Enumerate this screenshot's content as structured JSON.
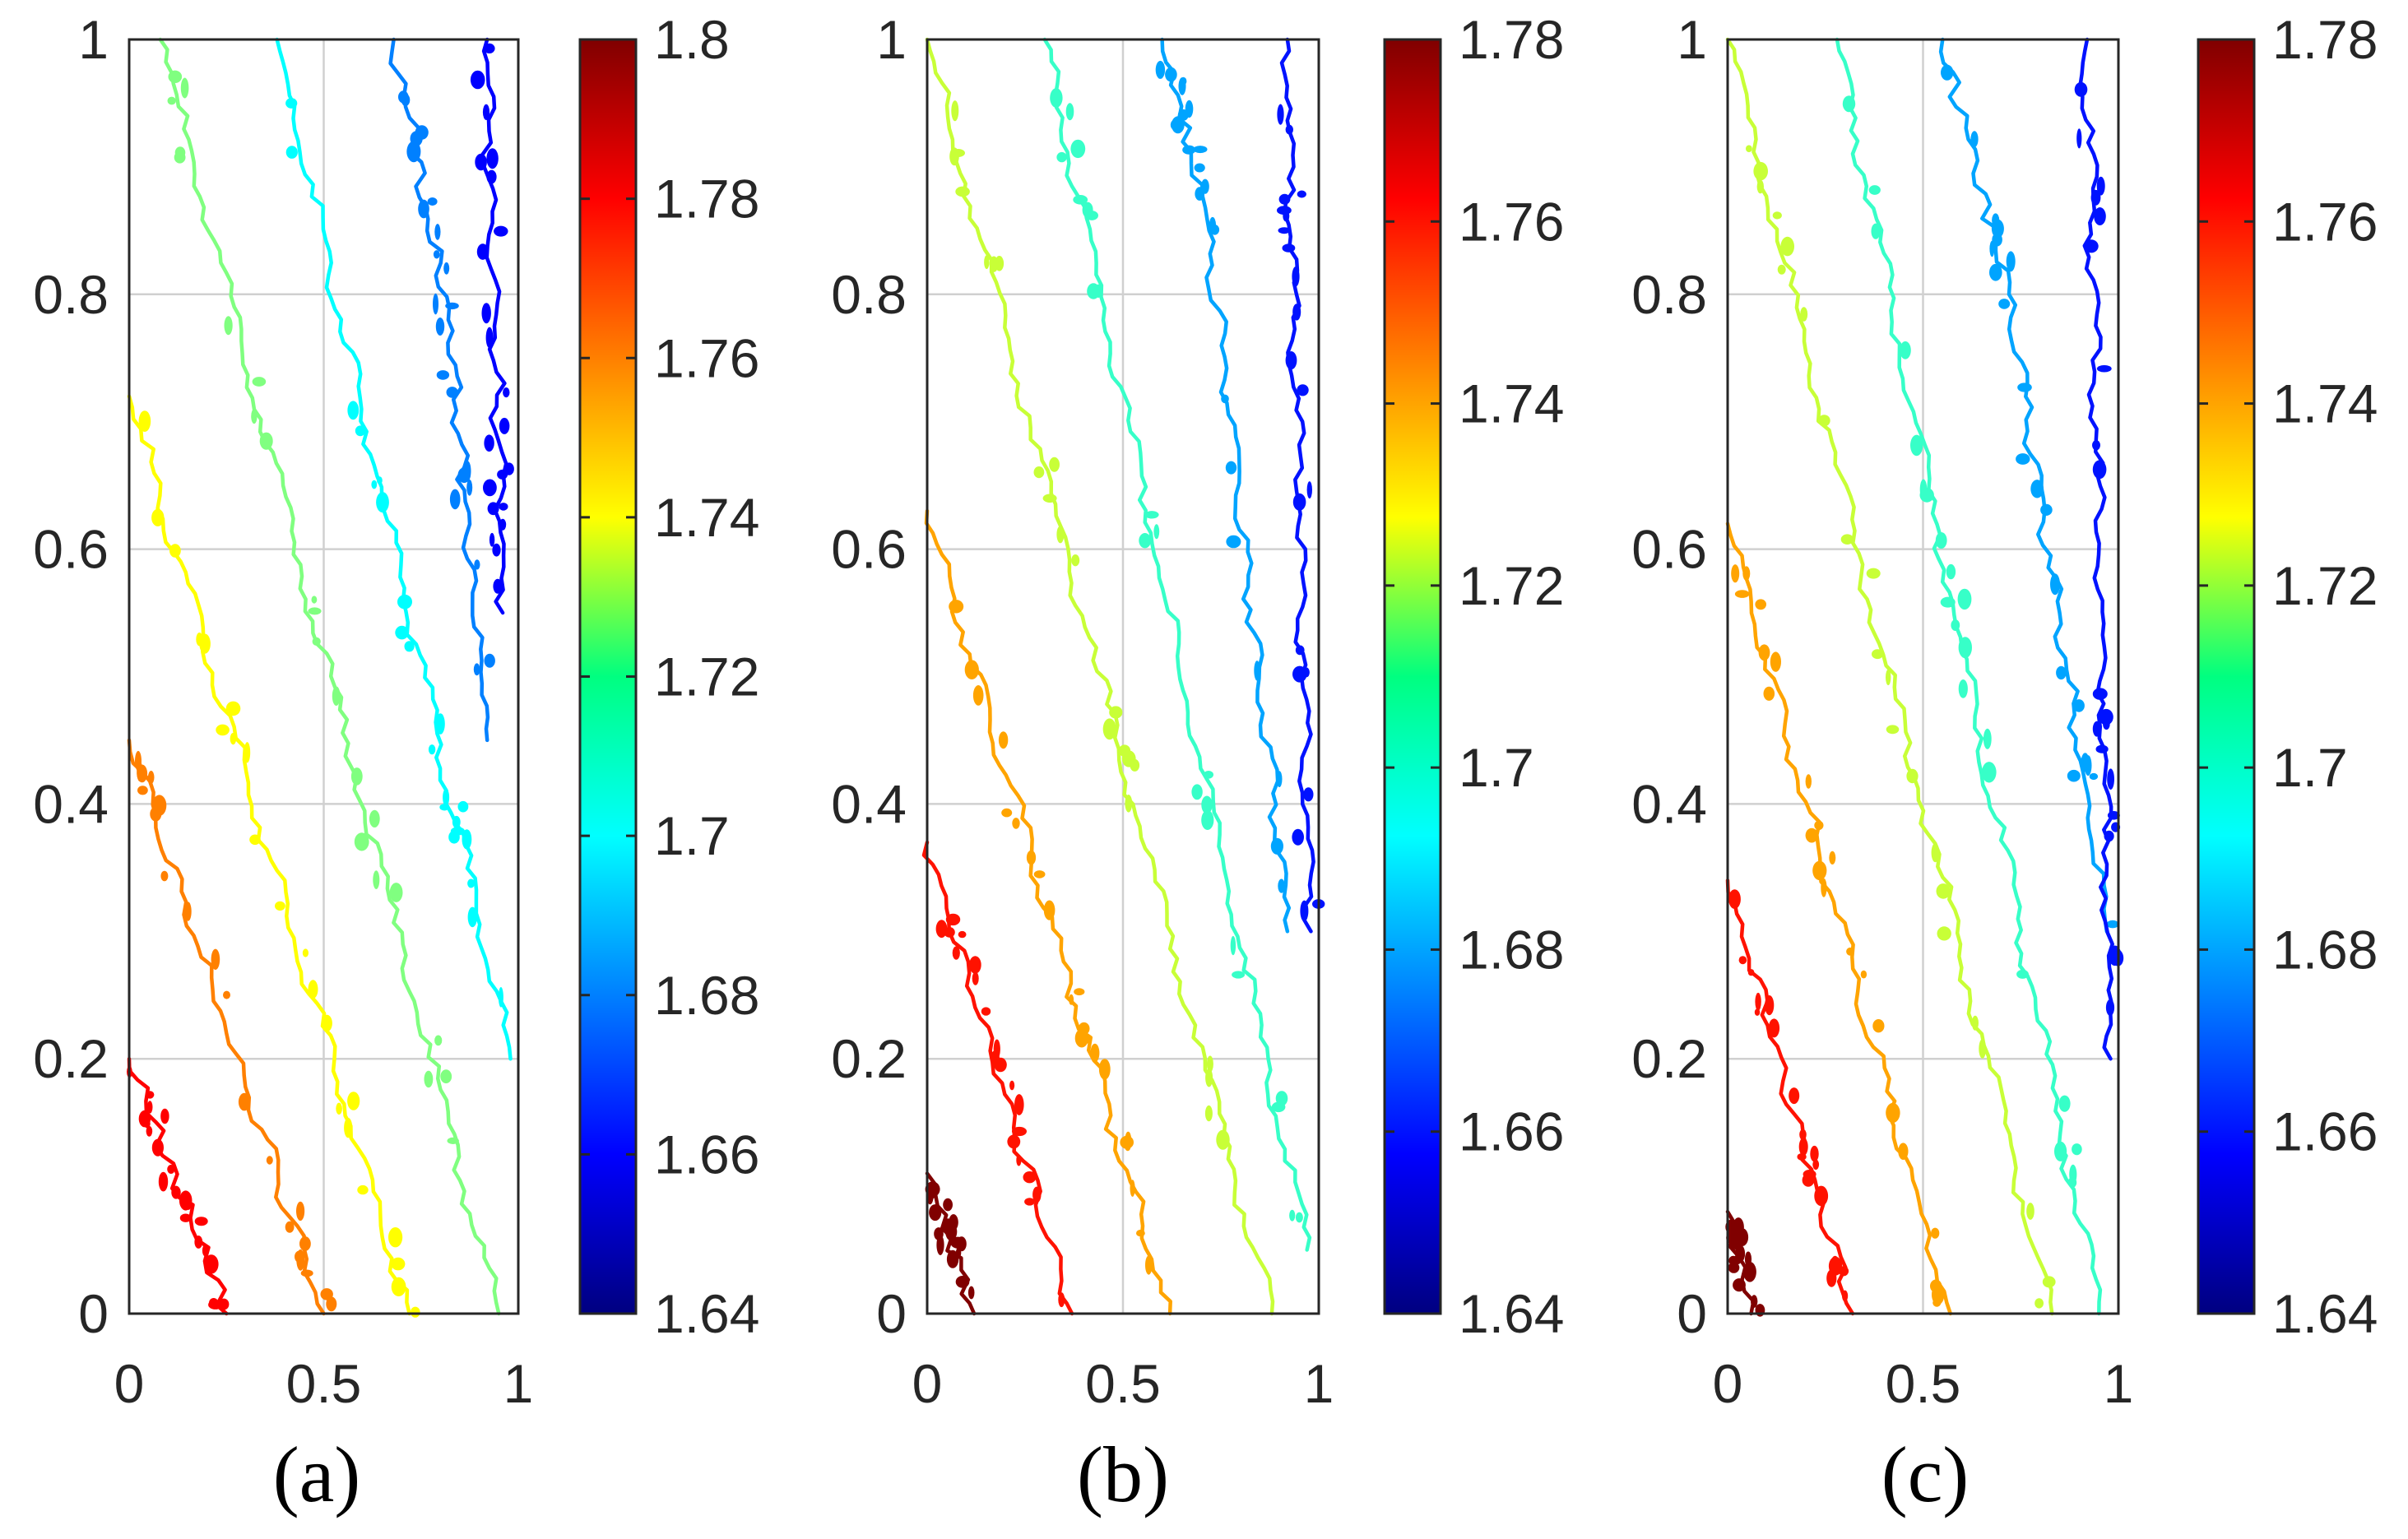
{
  "chart_data": [
    {
      "type": "contour",
      "caption": "(a)",
      "x_ticks": [
        "0",
        "0.5",
        "1"
      ],
      "y_ticks": [
        "0",
        "0.2",
        "0.4",
        "0.6",
        "0.8",
        "1"
      ],
      "xlim": [
        0,
        1
      ],
      "ylim": [
        0,
        1
      ],
      "grid": true,
      "colorbar": {
        "range": [
          1.64,
          1.8
        ],
        "ticks": [
          1.64,
          1.66,
          1.68,
          1.7,
          1.72,
          1.74,
          1.76,
          1.78,
          1.8
        ],
        "tick_labels": [
          "1.64",
          "1.66",
          "1.68",
          "1.7",
          "1.72",
          "1.74",
          "1.76",
          "1.78",
          "1.8"
        ]
      },
      "contours": [
        {
          "level": 1.78,
          "points": [
            [
              0.0,
              0.2
            ],
            [
              0.25,
              0.0
            ]
          ]
        },
        {
          "level": 1.76,
          "points": [
            [
              0.0,
              0.45
            ],
            [
              0.5,
              0.0
            ]
          ]
        },
        {
          "level": 1.74,
          "points": [
            [
              0.0,
              0.72
            ],
            [
              0.72,
              0.0
            ]
          ]
        },
        {
          "level": 1.72,
          "points": [
            [
              0.08,
              1.0
            ],
            [
              0.95,
              0.0
            ]
          ]
        },
        {
          "level": 1.7,
          "points": [
            [
              0.38,
              1.0
            ],
            [
              0.98,
              0.2
            ]
          ]
        },
        {
          "level": 1.68,
          "points": [
            [
              0.68,
              1.0
            ],
            [
              0.82,
              0.78
            ],
            [
              0.92,
              0.45
            ]
          ]
        },
        {
          "level": 1.66,
          "points": [
            [
              0.92,
              1.0
            ],
            [
              0.96,
              0.55
            ]
          ]
        }
      ]
    },
    {
      "type": "contour",
      "caption": "(b)",
      "x_ticks": [
        "0",
        "0.5",
        "1"
      ],
      "y_ticks": [
        "0",
        "0.2",
        "0.4",
        "0.6",
        "0.8",
        "1"
      ],
      "xlim": [
        0,
        1
      ],
      "ylim": [
        0,
        1
      ],
      "grid": true,
      "colorbar": {
        "range": [
          1.64,
          1.78
        ],
        "ticks": [
          1.64,
          1.66,
          1.68,
          1.7,
          1.72,
          1.74,
          1.76,
          1.78
        ],
        "tick_labels": [
          "1.64",
          "1.66",
          "1.68",
          "1.7",
          "1.72",
          "1.74",
          "1.76",
          "1.78"
        ]
      },
      "contours": [
        {
          "level": 1.78,
          "points": [
            [
              0.0,
              0.11
            ],
            [
              0.12,
              0.0
            ]
          ]
        },
        {
          "level": 1.76,
          "points": [
            [
              0.0,
              0.37
            ],
            [
              0.37,
              0.0
            ]
          ]
        },
        {
          "level": 1.74,
          "points": [
            [
              0.0,
              0.63
            ],
            [
              0.62,
              0.0
            ]
          ]
        },
        {
          "level": 1.72,
          "points": [
            [
              0.0,
              1.0
            ],
            [
              0.88,
              0.0
            ]
          ]
        },
        {
          "level": 1.7,
          "points": [
            [
              0.3,
              1.0
            ],
            [
              0.97,
              0.05
            ]
          ]
        },
        {
          "level": 1.68,
          "points": [
            [
              0.6,
              1.0
            ],
            [
              0.72,
              0.85
            ],
            [
              0.92,
              0.3
            ]
          ]
        },
        {
          "level": 1.66,
          "points": [
            [
              0.92,
              1.0
            ],
            [
              0.98,
              0.3
            ]
          ]
        }
      ]
    },
    {
      "type": "contour",
      "caption": "(c)",
      "x_ticks": [
        "0",
        "0.5",
        "1"
      ],
      "y_ticks": [
        "0",
        "0.2",
        "0.4",
        "0.6",
        "0.8",
        "1"
      ],
      "xlim": [
        0,
        1
      ],
      "ylim": [
        0,
        1
      ],
      "grid": true,
      "colorbar": {
        "range": [
          1.64,
          1.78
        ],
        "ticks": [
          1.64,
          1.66,
          1.68,
          1.7,
          1.72,
          1.74,
          1.76,
          1.78
        ],
        "tick_labels": [
          "1.64",
          "1.66",
          "1.68",
          "1.7",
          "1.72",
          "1.74",
          "1.76",
          "1.78"
        ]
      },
      "contours": [
        {
          "level": 1.78,
          "points": [
            [
              0.0,
              0.08
            ],
            [
              0.06,
              0.0
            ]
          ]
        },
        {
          "level": 1.76,
          "points": [
            [
              0.0,
              0.34
            ],
            [
              0.32,
              0.0
            ]
          ]
        },
        {
          "level": 1.74,
          "points": [
            [
              0.0,
              0.62
            ],
            [
              0.57,
              0.0
            ]
          ]
        },
        {
          "level": 1.72,
          "points": [
            [
              0.0,
              1.0
            ],
            [
              0.83,
              0.0
            ]
          ]
        },
        {
          "level": 1.7,
          "points": [
            [
              0.28,
              1.0
            ],
            [
              0.95,
              0.0
            ]
          ]
        },
        {
          "level": 1.68,
          "points": [
            [
              0.55,
              1.0
            ],
            [
              0.72,
              0.8
            ],
            [
              0.97,
              0.3
            ]
          ]
        },
        {
          "level": 1.66,
          "points": [
            [
              0.92,
              1.0
            ],
            [
              0.98,
              0.2
            ]
          ]
        }
      ]
    }
  ]
}
